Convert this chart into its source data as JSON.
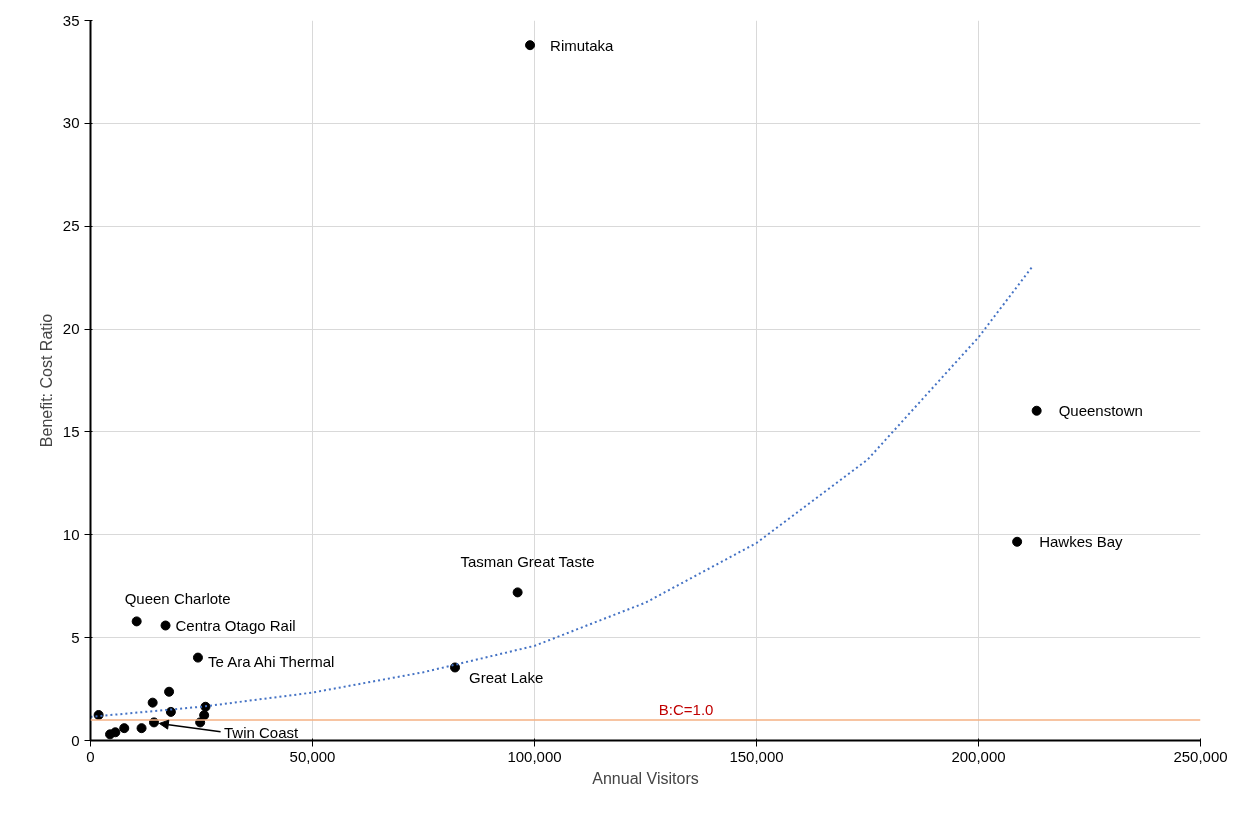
{
  "chart_data": {
    "type": "scatter",
    "xlabel": "Annual Visitors",
    "ylabel": "Benefit: Cost Ratio",
    "xlim": [
      0,
      250000
    ],
    "ylim": [
      0,
      35
    ],
    "xticks": [
      {
        "value": 0,
        "label": "0"
      },
      {
        "value": 50000,
        "label": "50,000"
      },
      {
        "value": 100000,
        "label": "100,000"
      },
      {
        "value": 150000,
        "label": "150,000"
      },
      {
        "value": 200000,
        "label": "200,000"
      },
      {
        "value": 250000,
        "label": "250,000"
      }
    ],
    "yticks": [
      0,
      5,
      10,
      15,
      20,
      25,
      30,
      35
    ],
    "grid": true,
    "marker": "circle",
    "series": [
      {
        "color": "#000000",
        "x": [
          1830,
          4400,
          5600,
          7600,
          11500,
          10400,
          16900,
          24200,
          14000,
          17700,
          18100,
          14300,
          24700,
          25600,
          25900,
          82100,
          96200,
          99000,
          213100,
          208700
        ],
        "values": [
          1.24,
          0.3,
          0.4,
          0.6,
          0.6,
          5.79,
          5.59,
          4.03,
          1.84,
          2.37,
          1.39,
          0.88,
          0.88,
          1.23,
          1.64,
          3.55,
          7.2,
          33.8,
          16.03,
          9.66
        ]
      },
      {
        "type": "line",
        "color": "#4472c4",
        "line_style": "dotted",
        "marker": "none",
        "x": [
          0,
          25000,
          50000,
          75000,
          100000,
          125000,
          150000,
          175000,
          200000,
          212000
        ],
        "values": [
          1.15,
          1.64,
          2.33,
          3.32,
          4.6,
          6.7,
          9.6,
          13.65,
          19.6,
          23.0
        ]
      }
    ],
    "ref_lines": [
      {
        "axis": "y",
        "value": 1.0,
        "label": "B:C=1.0",
        "color": "#f4b183",
        "line_style": "solid"
      }
    ],
    "annotations": [
      {
        "text": "Rimutaka",
        "x": 99000,
        "y": 33.8
      },
      {
        "text": "Queenstown",
        "x": 213100,
        "y": 16.03
      },
      {
        "text": "Hawkes Bay",
        "x": 208700,
        "y": 9.66
      },
      {
        "text": "Tasman Great Taste",
        "x": 96200,
        "y": 7.2
      },
      {
        "text": "Great Lake",
        "x": 82100,
        "y": 3.55
      },
      {
        "text": "Queen Charlote",
        "x": 10400,
        "y": 5.79
      },
      {
        "text": "Centra Otago Rail",
        "x": 16900,
        "y": 5.59
      },
      {
        "text": "Te Ara Ahi Thermal",
        "x": 24200,
        "y": 4.03
      },
      {
        "text": "Twin Coast",
        "x": 14300,
        "y": 0.88
      }
    ]
  }
}
